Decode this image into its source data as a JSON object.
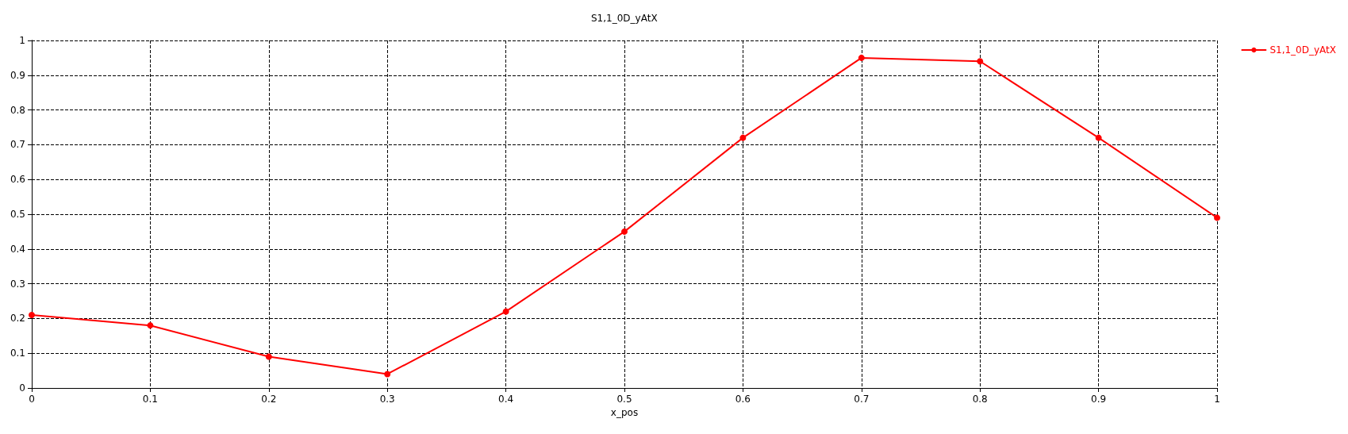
{
  "chart_data": {
    "type": "line",
    "title": "S1,1_0D_yAtX",
    "xlabel": "x_pos",
    "x": [
      0,
      0.1,
      0.2,
      0.3,
      0.4,
      0.5,
      0.6,
      0.7,
      0.8,
      0.9,
      1
    ],
    "series": [
      {
        "name": "S1,1_0D_yAtX",
        "color": "#ff0000",
        "values": [
          0.21,
          0.18,
          0.09,
          0.04,
          0.22,
          0.45,
          0.72,
          0.95,
          0.94,
          0.72,
          0.49
        ]
      }
    ],
    "xlim": [
      0,
      1
    ],
    "xticks": [
      0,
      0.1,
      0.2,
      0.3,
      0.4,
      0.5,
      0.6,
      0.7,
      0.8,
      0.9,
      1
    ],
    "ylim": [
      0,
      1
    ],
    "yticks": [
      0,
      0.1,
      0.2,
      0.3,
      0.4,
      0.5,
      0.6,
      0.7,
      0.8,
      0.9,
      1
    ],
    "grid": true,
    "legend": "top right",
    "marker": "circle",
    "line_style": "solid"
  }
}
